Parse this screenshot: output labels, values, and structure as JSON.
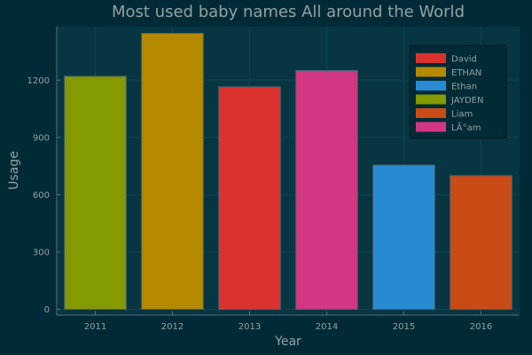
{
  "chart_data": {
    "type": "bar",
    "title": "Most used baby names All around the World",
    "xlabel": "Year",
    "ylabel": "Usage",
    "categories": [
      "2011",
      "2012",
      "2013",
      "2014",
      "2015",
      "2016"
    ],
    "ylim": [
      -30,
      1480
    ],
    "yticks": [
      0,
      300,
      600,
      900,
      1200
    ],
    "series": [
      {
        "name": "David",
        "color": "#dc322f",
        "values": [
          null,
          null,
          1165,
          null,
          null,
          null
        ]
      },
      {
        "name": "ETHAN",
        "color": "#b58900",
        "values": [
          null,
          1445,
          null,
          null,
          null,
          null
        ]
      },
      {
        "name": "Ethan",
        "color": "#268bd2",
        "values": [
          null,
          null,
          null,
          null,
          755,
          null
        ]
      },
      {
        "name": "JAYDEN",
        "color": "#859900",
        "values": [
          1220,
          null,
          null,
          null,
          null,
          null
        ]
      },
      {
        "name": "Liam",
        "color": "#cb4b16",
        "values": [
          null,
          null,
          null,
          null,
          null,
          700
        ]
      },
      {
        "name": "LÃ°am",
        "color": "#d33682",
        "values": [
          null,
          null,
          null,
          1250,
          null,
          null
        ]
      }
    ],
    "grid": true,
    "legend_position": "top-right"
  },
  "colors": {
    "background": "#002b36",
    "plot_background": "#073642",
    "axis": "#586e75",
    "grid": "#0d4452",
    "text": "#93a1a1",
    "bar_stroke": "#4a6470"
  }
}
